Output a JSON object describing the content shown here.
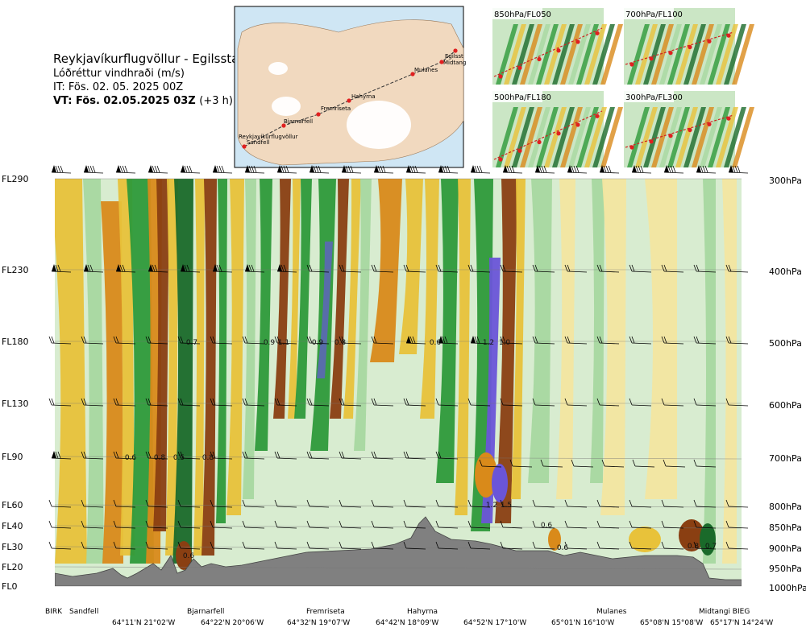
{
  "header": {
    "route_title": "Reykjavíkurflugvöllur - Egilsstadir",
    "subtitle": "Lóðréttur vindhraði (m/s)",
    "issue_time": "IT: Fös. 02. 05. 2025 00Z",
    "valid_time_bold": "VT: Fös. 02.05.2025 03Z",
    "valid_time_offset": "(+3 h)"
  },
  "map": {
    "waypoints": [
      "Reykjavíkurflugvöllur",
      "Sandfell",
      "Bjarnarfell",
      "Fremriseta",
      "Hahyrna",
      "Mulanes",
      "Egilsst",
      "Midtang"
    ],
    "route_color": "#e02020"
  },
  "thumbnails": [
    {
      "label": "850hPa/FL050"
    },
    {
      "label": "700hPa/FL100"
    },
    {
      "label": "500hPa/FL180"
    },
    {
      "label": "300hPa/FL300"
    }
  ],
  "colors": {
    "strong_down": "#8a3f12",
    "mod_down": "#d98a1a",
    "weak_down": "#e8c23a",
    "very_weak_down": "#f3e6a0",
    "neutral": "#d8ecd0",
    "weak_up": "#a8d8a0",
    "mod_up": "#2e9a3a",
    "strong_up": "#1a6a2a",
    "very_strong_up": "#5a6ab0",
    "extreme_up": "#6a55d8",
    "terrain": "#808080"
  },
  "chart_data": {
    "type": "heatmap",
    "title": "Lóðréttur vindhraði (m/s)",
    "y_left_labels": [
      "FL290",
      "FL230",
      "FL180",
      "FL130",
      "FL90",
      "FL60",
      "FL40",
      "FL30",
      "FL20",
      "FL0"
    ],
    "y_right_labels": [
      "300hPa",
      "400hPa",
      "500hPa",
      "600hPa",
      "700hPa",
      "800hPa",
      "850hPa",
      "900hPa",
      "950hPa",
      "1000hPa"
    ],
    "x_names": [
      "BIRK",
      "Sandfell",
      "Bjarnarfell",
      "Fremriseta",
      "Hahyrna",
      "Mulanes",
      "Midtangi BIEG"
    ],
    "x_coords": [
      "64°11'N 21°02'W",
      "64°22'N 20°06'W",
      "64°32'N 19°07'W",
      "64°42'N 18°09'W",
      "64°52'N 17°10'W",
      "65°01'N 16°10'W",
      "65°08'N 15°08'W",
      "65°17'N 14°24'W"
    ],
    "value_labels": [
      {
        "text": "0.7",
        "level": "FL180"
      },
      {
        "text": "0.9",
        "level": "FL180"
      },
      {
        "text": "1.1",
        "level": "FL180"
      },
      {
        "text": "0.9",
        "level": "FL180"
      },
      {
        "text": "0.8",
        "level": "FL180"
      },
      {
        "text": "0.6",
        "level": "FL180"
      },
      {
        "text": "1.2",
        "level": "FL180"
      },
      {
        "text": "1.0",
        "level": "FL180"
      },
      {
        "text": "0.6",
        "level": "FL90"
      },
      {
        "text": "0.8",
        "level": "FL90"
      },
      {
        "text": "0.5",
        "level": "FL90"
      },
      {
        "text": "0.8",
        "level": "FL90"
      },
      {
        "text": "1.2",
        "level": "FL60"
      },
      {
        "text": "1.5",
        "level": "FL60"
      },
      {
        "text": "0.6",
        "level": "FL40"
      },
      {
        "text": "0.6",
        "level": "FL30"
      },
      {
        "text": "0.6",
        "level": "FL30"
      },
      {
        "text": "0.8",
        "level": "FL30"
      },
      {
        "text": "0.7",
        "level": "FL30"
      },
      {
        "text": "0.6",
        "level": "FL20"
      }
    ]
  }
}
